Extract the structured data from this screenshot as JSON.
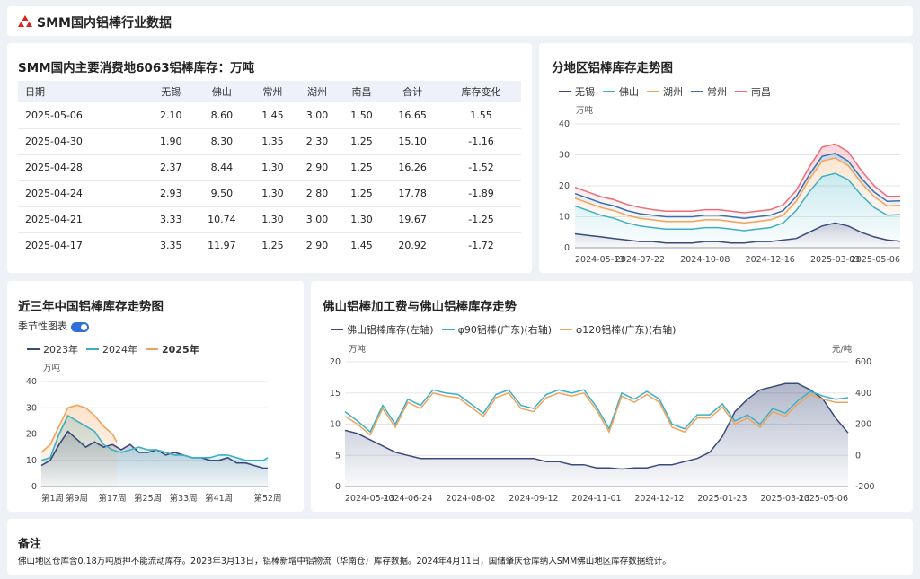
{
  "header": {
    "title": "SMM国内铝棒行业数据"
  },
  "inventory_table": {
    "title": "SMM国内主要消费地6063铝棒库存：万吨",
    "columns": [
      "日期",
      "无锡",
      "佛山",
      "常州",
      "湖州",
      "南昌",
      "合计",
      "库存变化"
    ],
    "rows": [
      [
        "2025-05-06",
        "2.10",
        "8.60",
        "1.45",
        "3.00",
        "1.50",
        "16.65",
        "1.55"
      ],
      [
        "2025-04-30",
        "1.90",
        "8.30",
        "1.35",
        "2.30",
        "1.25",
        "15.10",
        "-1.16"
      ],
      [
        "2025-04-28",
        "2.37",
        "8.44",
        "1.30",
        "2.90",
        "1.25",
        "16.26",
        "-1.52"
      ],
      [
        "2025-04-24",
        "2.93",
        "9.50",
        "1.30",
        "2.80",
        "1.25",
        "17.78",
        "-1.89"
      ],
      [
        "2025-04-21",
        "3.33",
        "10.74",
        "1.30",
        "3.00",
        "1.30",
        "19.67",
        "-1.25"
      ],
      [
        "2025-04-17",
        "3.35",
        "11.97",
        "1.25",
        "2.90",
        "1.45",
        "20.92",
        "-1.72"
      ]
    ]
  },
  "regional_chart": {
    "title": "分地区铝棒库存走势图",
    "unit": "万吨",
    "legend": [
      {
        "name": "无锡",
        "color": "#3a4a7a"
      },
      {
        "name": "佛山",
        "color": "#3bb0c4"
      },
      {
        "name": "湖州",
        "color": "#f0a35a"
      },
      {
        "name": "常州",
        "color": "#3b6fb0"
      },
      {
        "name": "南昌",
        "color": "#ee6a76"
      }
    ]
  },
  "seasonal_chart": {
    "title": "近三年中国铝棒库存走势图",
    "toggle_label": "季节性图表",
    "unit": "万吨",
    "legend": [
      {
        "name": "2023年",
        "color": "#3a4a7a",
        "bold": false
      },
      {
        "name": "2024年",
        "color": "#3bb0c4",
        "bold": false
      },
      {
        "name": "2025年",
        "color": "#f0a35a",
        "bold": true
      }
    ]
  },
  "foshan_chart": {
    "title": "佛山铝棒加工费与佛山铝棒库存走势",
    "left_unit": "万吨",
    "right_unit": "元/吨",
    "legend": [
      {
        "name": "佛山铝棒库存(左轴)",
        "color": "#3a4a7a"
      },
      {
        "name": "φ90铝棒(广东)(右轴)",
        "color": "#3bb0c4"
      },
      {
        "name": "φ120铝棒(广东)(右轴)",
        "color": "#f0a35a"
      }
    ]
  },
  "chart_data": [
    {
      "type": "area",
      "title": "分地区铝棒库存走势图",
      "ylabel": "万吨",
      "ylim": [
        0,
        40
      ],
      "yticks": [
        0,
        10,
        20,
        30,
        40
      ],
      "x_ticks": [
        "2024-05-13",
        "2024-07-22",
        "2024-10-08",
        "2024-12-16",
        "2025-03-03",
        "2025-05-06"
      ],
      "stacked": true,
      "series": [
        {
          "name": "无锡",
          "color": "#3a4a7a",
          "values": [
            4.5,
            4,
            3.5,
            3,
            2.5,
            2,
            2,
            1.5,
            1.5,
            1.5,
            2,
            2,
            1.5,
            1.5,
            2,
            2,
            2.5,
            3,
            5,
            7,
            8,
            7,
            5,
            3.5,
            2.5,
            2.1
          ]
        },
        {
          "name": "佛山",
          "color": "#3bb0c4",
          "values": [
            9,
            8,
            7,
            6.5,
            5.5,
            5,
            4.5,
            4.5,
            4.5,
            4.5,
            4.5,
            4.5,
            4.5,
            4,
            4,
            4.5,
            5.5,
            9,
            13,
            16,
            16,
            15,
            12,
            9.5,
            8,
            8.6
          ]
        },
        {
          "name": "湖州",
          "color": "#f0a35a",
          "values": [
            2.5,
            2.5,
            2.5,
            2.5,
            2.5,
            2.5,
            2.5,
            2.5,
            2.5,
            2.5,
            2.5,
            2.5,
            2.5,
            2.5,
            2.5,
            2.5,
            2.5,
            3,
            4,
            5,
            5,
            4.5,
            4,
            3.5,
            3,
            3
          ]
        },
        {
          "name": "常州",
          "color": "#3b6fb0",
          "values": [
            1.5,
            1.5,
            1.5,
            1.5,
            1.5,
            1.5,
            1.5,
            1.5,
            1.5,
            1.5,
            1.5,
            1.5,
            1.5,
            1.5,
            1.5,
            1.5,
            1.5,
            1.5,
            1.5,
            1.5,
            1.5,
            1.5,
            1.5,
            1.5,
            1.5,
            1.45
          ]
        },
        {
          "name": "南昌",
          "color": "#ee6a76",
          "values": [
            2,
            2,
            2,
            2,
            2,
            2,
            1.8,
            1.8,
            1.8,
            1.8,
            1.8,
            1.8,
            1.8,
            1.8,
            1.8,
            1.8,
            1.8,
            2,
            2.5,
            3,
            3,
            3,
            2.5,
            2,
            1.6,
            1.5
          ]
        }
      ]
    },
    {
      "type": "line",
      "title": "近三年中国铝棒库存走势图",
      "ylabel": "万吨",
      "ylim": [
        0,
        40
      ],
      "yticks": [
        0,
        10,
        20,
        30,
        40
      ],
      "x_ticks": [
        "第1周",
        "第9周",
        "第17周",
        "第25周",
        "第33周",
        "第41周",
        "第52周"
      ],
      "x_tick_weeks": [
        1,
        9,
        17,
        25,
        33,
        41,
        52
      ],
      "series": [
        {
          "name": "2023年",
          "color": "#3a4a7a",
          "weeks": [
            1,
            3,
            5,
            7,
            9,
            11,
            13,
            15,
            17,
            19,
            21,
            23,
            25,
            27,
            29,
            31,
            33,
            35,
            37,
            39,
            41,
            43,
            45,
            47,
            49,
            51,
            52
          ],
          "values": [
            8,
            10,
            16,
            21,
            18,
            15,
            17,
            15,
            16,
            14,
            16,
            13,
            13,
            14,
            12,
            13,
            12,
            11,
            11,
            10,
            10,
            11,
            9,
            9,
            8,
            7,
            7
          ]
        },
        {
          "name": "2024年",
          "color": "#3bb0c4",
          "weeks": [
            1,
            3,
            5,
            7,
            9,
            11,
            13,
            15,
            17,
            19,
            21,
            23,
            25,
            27,
            29,
            31,
            33,
            35,
            37,
            39,
            41,
            43,
            45,
            47,
            49,
            51,
            52
          ],
          "values": [
            10,
            11,
            20,
            27,
            25,
            23,
            21,
            16,
            14,
            13,
            14,
            15,
            14,
            14,
            13,
            12,
            12,
            11,
            11,
            11,
            12,
            12,
            11,
            10,
            10,
            10,
            11
          ]
        },
        {
          "name": "2025年",
          "color": "#f0a35a",
          "weeks": [
            1,
            3,
            5,
            7,
            9,
            11,
            13,
            15,
            17,
            18
          ],
          "values": [
            13,
            16,
            23,
            30,
            31,
            30,
            27,
            23,
            20,
            17
          ]
        }
      ]
    },
    {
      "type": "line",
      "title": "佛山铝棒加工费与佛山铝棒库存走势",
      "x_ticks": [
        "2024-05-13",
        "2024-06-24",
        "2024-08-02",
        "2024-09-12",
        "2024-11-01",
        "2024-12-12",
        "2025-01-23",
        "2025-03-13",
        "2025-05-06"
      ],
      "left_axis": {
        "label": "万吨",
        "ylim": [
          0,
          20
        ],
        "yticks": [
          0,
          5,
          10,
          15,
          20
        ]
      },
      "right_axis": {
        "label": "元/吨",
        "ylim": [
          -200,
          600
        ],
        "yticks": [
          -200,
          0,
          200,
          400,
          600
        ]
      },
      "series": [
        {
          "name": "佛山铝棒库存(左轴)",
          "axis": "left",
          "color": "#3a4a7a",
          "values": [
            9,
            8.5,
            7.5,
            6.5,
            5.5,
            5,
            4.5,
            4.5,
            4.5,
            4.5,
            4.5,
            4.5,
            4.5,
            4.5,
            4.5,
            4.5,
            4,
            4,
            3.5,
            3.5,
            3,
            3,
            2.8,
            3,
            3,
            3.5,
            3.5,
            4,
            4.5,
            5.5,
            8,
            12,
            14,
            15.5,
            16,
            16.5,
            16.5,
            15.5,
            14,
            11,
            8.6
          ]
        },
        {
          "name": "φ90铝棒(广东)(右轴)",
          "axis": "right",
          "color": "#3bb0c4",
          "values": [
            280,
            220,
            150,
            320,
            200,
            360,
            320,
            420,
            400,
            390,
            330,
            270,
            390,
            420,
            320,
            300,
            390,
            420,
            400,
            420,
            310,
            170,
            400,
            360,
            410,
            360,
            200,
            170,
            260,
            260,
            330,
            220,
            260,
            200,
            300,
            270,
            350,
            410,
            380,
            360,
            370
          ]
        },
        {
          "name": "φ120铝棒(广东)(右轴)",
          "axis": "right",
          "color": "#f0a35a",
          "values": [
            250,
            200,
            130,
            300,
            180,
            340,
            300,
            400,
            380,
            370,
            310,
            250,
            370,
            400,
            300,
            280,
            370,
            400,
            380,
            400,
            290,
            150,
            380,
            340,
            390,
            340,
            180,
            150,
            240,
            240,
            310,
            200,
            240,
            180,
            280,
            250,
            330,
            390,
            360,
            340,
            340
          ]
        }
      ]
    }
  ],
  "note": {
    "title": "备注",
    "text": "佛山地区仓库含0.18万吨质押不能流动库存。2023年3月13日，铝棒新增中铝物流（华南仓）库存数据。2024年4月11日，国储肇庆仓库纳入SMM佛山地区库存数据统计。"
  }
}
